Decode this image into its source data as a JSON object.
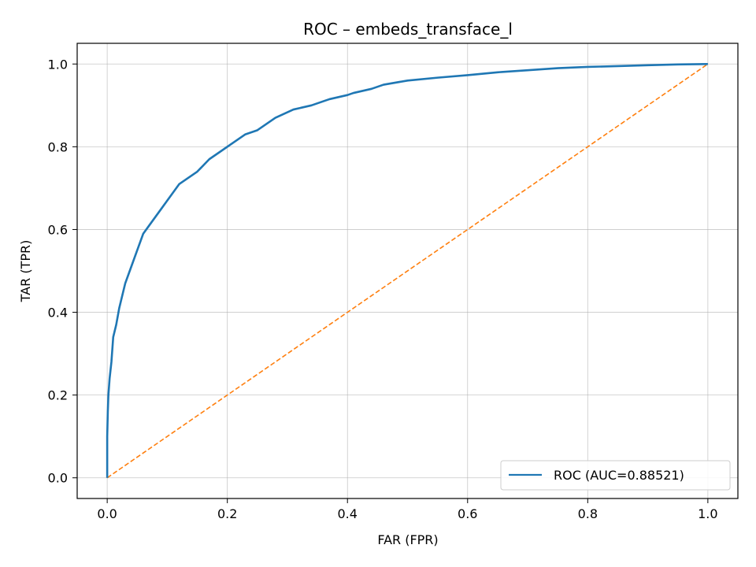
{
  "chart_data": {
    "type": "line",
    "title": "ROC – embeds_transface_l",
    "xlabel": "FAR (FPR)",
    "ylabel": "TAR (TPR)",
    "xlim": [
      -0.05,
      1.05
    ],
    "ylim": [
      -0.05,
      1.05
    ],
    "xticks": [
      0.0,
      0.2,
      0.4,
      0.6,
      0.8,
      1.0
    ],
    "yticks": [
      0.0,
      0.2,
      0.4,
      0.6,
      0.8,
      1.0
    ],
    "xtick_labels": [
      "0.0",
      "0.2",
      "0.4",
      "0.6",
      "0.8",
      "1.0"
    ],
    "ytick_labels": [
      "0.0",
      "0.2",
      "0.4",
      "0.6",
      "0.8",
      "1.0"
    ],
    "grid": true,
    "legend_position": "lower-right",
    "series": [
      {
        "name": "ROC (AUC=0.88521)",
        "color": "#1f77b4",
        "style": "solid",
        "x": [
          0.0,
          0.0,
          0.001,
          0.002,
          0.004,
          0.007,
          0.01,
          0.015,
          0.02,
          0.03,
          0.04,
          0.05,
          0.06,
          0.07,
          0.08,
          0.09,
          0.1,
          0.11,
          0.12,
          0.13,
          0.15,
          0.17,
          0.19,
          0.21,
          0.23,
          0.25,
          0.28,
          0.31,
          0.34,
          0.37,
          0.4,
          0.41,
          0.44,
          0.46,
          0.5,
          0.55,
          0.6,
          0.65,
          0.7,
          0.75,
          0.8,
          0.85,
          0.9,
          0.95,
          1.0
        ],
        "y": [
          0.0,
          0.1,
          0.16,
          0.2,
          0.24,
          0.28,
          0.34,
          0.37,
          0.41,
          0.47,
          0.51,
          0.55,
          0.59,
          0.61,
          0.63,
          0.65,
          0.67,
          0.69,
          0.71,
          0.72,
          0.74,
          0.77,
          0.79,
          0.81,
          0.83,
          0.84,
          0.87,
          0.89,
          0.9,
          0.915,
          0.925,
          0.93,
          0.94,
          0.95,
          0.96,
          0.967,
          0.973,
          0.98,
          0.985,
          0.99,
          0.993,
          0.995,
          0.997,
          0.999,
          1.0
        ]
      },
      {
        "name": "",
        "color": "#ff7f0e",
        "style": "dashed",
        "x": [
          0.0,
          1.0
        ],
        "y": [
          0.0,
          1.0
        ]
      }
    ]
  }
}
